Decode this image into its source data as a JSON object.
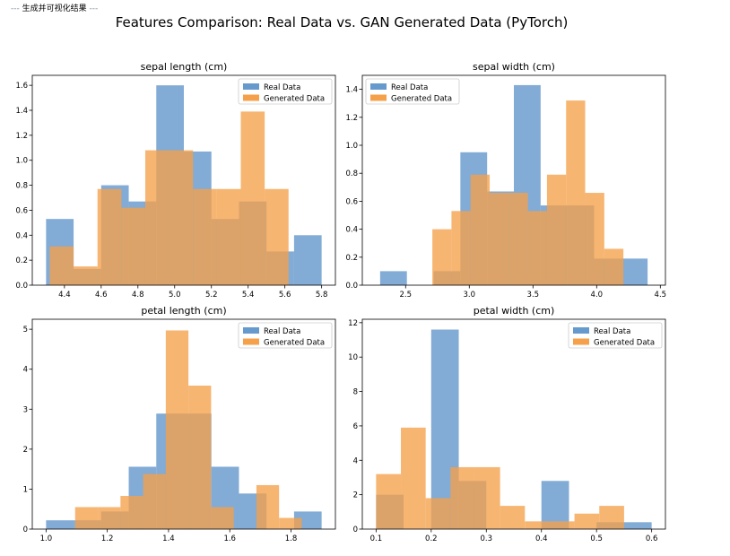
{
  "log_line": {
    "prefix": "---",
    "text": "生成并可视化结果",
    "suffix": "---"
  },
  "figure": {
    "suptitle": "Features Comparison: Real Data vs. GAN Generated Data  (PyTorch)"
  },
  "colors": {
    "real": "#6699cc",
    "generated": "#f5a04a",
    "overlap": "#b8885a",
    "axis": "#000000"
  },
  "chart_data": [
    {
      "type": "bar",
      "title": "sepal length (cm)",
      "xlim": [
        4.225,
        5.875
      ],
      "ylim": [
        0,
        1.68
      ],
      "xticks": [
        4.4,
        4.6,
        4.8,
        5.0,
        5.2,
        5.4,
        5.6,
        5.8
      ],
      "xtick_labels": [
        "4.4",
        "4.6",
        "4.8",
        "5.0",
        "5.2",
        "5.4",
        "5.6",
        "5.8"
      ],
      "yticks": [
        0,
        0.2,
        0.4,
        0.6,
        0.8,
        1.0,
        1.2,
        1.4,
        1.6
      ],
      "ytick_labels": [
        "0.0",
        "0.2",
        "0.4",
        "0.6",
        "0.8",
        "1.0",
        "1.2",
        "1.4",
        "1.6"
      ],
      "legend": [
        "Real Data",
        "Generated Data"
      ],
      "legend_loc": "top-right",
      "series": [
        {
          "name": "Real Data",
          "bins": [
            [
              4.3,
              4.45
            ],
            [
              4.45,
              4.6
            ],
            [
              4.6,
              4.75
            ],
            [
              4.75,
              4.9
            ],
            [
              4.9,
              5.05
            ],
            [
              5.05,
              5.2
            ],
            [
              5.2,
              5.35
            ],
            [
              5.35,
              5.5
            ],
            [
              5.5,
              5.65
            ],
            [
              5.65,
              5.8
            ]
          ],
          "values": [
            0.53,
            0.13,
            0.8,
            0.67,
            1.6,
            1.07,
            0.53,
            0.67,
            0.27,
            0.4
          ]
        },
        {
          "name": "Generated Data",
          "bins": [
            [
              4.32,
              4.45
            ],
            [
              4.45,
              4.58
            ],
            [
              4.58,
              4.71
            ],
            [
              4.71,
              4.84
            ],
            [
              4.84,
              4.97
            ],
            [
              4.97,
              5.1
            ],
            [
              5.1,
              5.23
            ],
            [
              5.23,
              5.36
            ],
            [
              5.36,
              5.49
            ],
            [
              5.49,
              5.62
            ]
          ],
          "values": [
            0.31,
            0.15,
            0.77,
            0.62,
            1.08,
            1.08,
            0.77,
            0.77,
            1.39,
            0.77
          ]
        }
      ]
    },
    {
      "type": "bar",
      "title": "sepal width (cm)",
      "xlim": [
        2.16,
        4.54
      ],
      "ylim": [
        0,
        1.5
      ],
      "xticks": [
        2.5,
        3.0,
        3.5,
        4.0,
        4.5
      ],
      "xtick_labels": [
        "2.5",
        "3.0",
        "3.5",
        "4.0",
        "4.5"
      ],
      "yticks": [
        0,
        0.2,
        0.4,
        0.6,
        0.8,
        1.0,
        1.2,
        1.4
      ],
      "ytick_labels": [
        "0.0",
        "0.2",
        "0.4",
        "0.6",
        "0.8",
        "1.0",
        "1.2",
        "1.4"
      ],
      "legend": [
        "Real Data",
        "Generated Data"
      ],
      "legend_loc": "top-left",
      "series": [
        {
          "name": "Real Data",
          "bins": [
            [
              2.3,
              2.51
            ],
            [
              2.51,
              2.72
            ],
            [
              2.72,
              2.93
            ],
            [
              2.93,
              3.14
            ],
            [
              3.14,
              3.35
            ],
            [
              3.35,
              3.56
            ],
            [
              3.56,
              3.77
            ],
            [
              3.77,
              3.98
            ],
            [
              3.98,
              4.19
            ],
            [
              4.19,
              4.4
            ]
          ],
          "values": [
            0.1,
            0.0,
            0.1,
            0.95,
            0.67,
            1.43,
            0.57,
            0.57,
            0.19,
            0.19
          ]
        },
        {
          "name": "Generated Data",
          "bins": [
            [
              2.71,
              2.86
            ],
            [
              2.86,
              3.01
            ],
            [
              3.01,
              3.16
            ],
            [
              3.16,
              3.31
            ],
            [
              3.31,
              3.46
            ],
            [
              3.46,
              3.61
            ],
            [
              3.61,
              3.76
            ],
            [
              3.76,
              3.91
            ],
            [
              3.91,
              4.06
            ],
            [
              4.06,
              4.21
            ]
          ],
          "values": [
            0.4,
            0.53,
            0.79,
            0.66,
            0.66,
            0.53,
            0.79,
            1.32,
            0.66,
            0.26
          ]
        }
      ]
    },
    {
      "type": "bar",
      "title": "petal length (cm)",
      "xlim": [
        0.955,
        1.945
      ],
      "ylim": [
        0,
        5.25
      ],
      "xticks": [
        1.0,
        1.2,
        1.4,
        1.6,
        1.8
      ],
      "xtick_labels": [
        "1.0",
        "1.2",
        "1.4",
        "1.6",
        "1.8"
      ],
      "yticks": [
        0,
        1,
        2,
        3,
        4,
        5
      ],
      "ytick_labels": [
        "0",
        "1",
        "2",
        "3",
        "4",
        "5"
      ],
      "legend": [
        "Real Data",
        "Generated Data"
      ],
      "legend_loc": "top-right",
      "series": [
        {
          "name": "Real Data",
          "bins": [
            [
              1.0,
              1.09
            ],
            [
              1.09,
              1.18
            ],
            [
              1.18,
              1.27
            ],
            [
              1.27,
              1.36
            ],
            [
              1.36,
              1.45
            ],
            [
              1.45,
              1.54
            ],
            [
              1.54,
              1.63
            ],
            [
              1.63,
              1.72
            ],
            [
              1.72,
              1.81
            ],
            [
              1.81,
              1.9
            ]
          ],
          "values": [
            0.22,
            0.22,
            0.44,
            1.56,
            2.89,
            2.89,
            1.56,
            0.89,
            0.0,
            0.44
          ]
        },
        {
          "name": "Generated Data",
          "bins": [
            [
              1.095,
              1.169
            ],
            [
              1.169,
              1.243
            ],
            [
              1.243,
              1.317
            ],
            [
              1.317,
              1.391
            ],
            [
              1.391,
              1.465
            ],
            [
              1.465,
              1.539
            ],
            [
              1.539,
              1.613
            ],
            [
              1.613,
              1.687
            ],
            [
              1.687,
              1.761
            ],
            [
              1.761,
              1.835
            ]
          ],
          "values": [
            0.55,
            0.55,
            0.83,
            1.38,
            4.97,
            3.59,
            0.55,
            0.0,
            1.1,
            0.28
          ]
        }
      ]
    },
    {
      "type": "bar",
      "title": "petal width (cm)",
      "xlim": [
        0.075,
        0.625
      ],
      "ylim": [
        0,
        12.2
      ],
      "xticks": [
        0.1,
        0.2,
        0.3,
        0.4,
        0.5,
        0.6
      ],
      "xtick_labels": [
        "0.1",
        "0.2",
        "0.3",
        "0.4",
        "0.5",
        "0.6"
      ],
      "yticks": [
        0,
        2,
        4,
        6,
        8,
        10,
        12
      ],
      "ytick_labels": [
        "0",
        "2",
        "4",
        "6",
        "8",
        "10",
        "12"
      ],
      "legend": [
        "Real Data",
        "Generated Data"
      ],
      "legend_loc": "top-right",
      "series": [
        {
          "name": "Real Data",
          "bins": [
            [
              0.1,
              0.15
            ],
            [
              0.15,
              0.2
            ],
            [
              0.2,
              0.25
            ],
            [
              0.25,
              0.3
            ],
            [
              0.3,
              0.35
            ],
            [
              0.35,
              0.4
            ],
            [
              0.4,
              0.45
            ],
            [
              0.45,
              0.5
            ],
            [
              0.5,
              0.55
            ],
            [
              0.55,
              0.6
            ]
          ],
          "values": [
            2.0,
            0.0,
            11.6,
            2.8,
            0.0,
            0.0,
            2.8,
            0.0,
            0.4,
            0.4
          ]
        },
        {
          "name": "Generated Data",
          "bins": [
            [
              0.1,
              0.145
            ],
            [
              0.145,
              0.19
            ],
            [
              0.19,
              0.235
            ],
            [
              0.235,
              0.28
            ],
            [
              0.28,
              0.325
            ],
            [
              0.325,
              0.37
            ],
            [
              0.37,
              0.415
            ],
            [
              0.415,
              0.46
            ],
            [
              0.46,
              0.505
            ],
            [
              0.505,
              0.55
            ]
          ],
          "values": [
            3.2,
            5.9,
            1.8,
            3.6,
            3.6,
            1.35,
            0.45,
            0.45,
            0.9,
            1.35
          ]
        }
      ]
    }
  ]
}
